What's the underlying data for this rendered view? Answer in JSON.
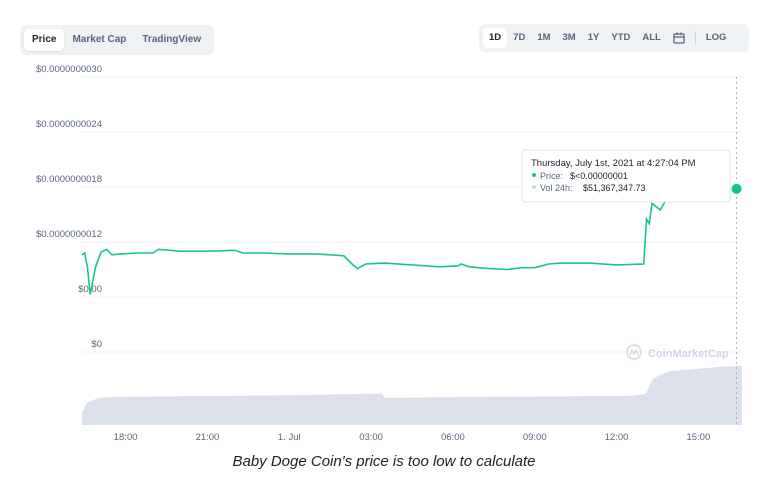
{
  "tabs": {
    "items": [
      {
        "label": "Price",
        "active": true
      },
      {
        "label": "Market Cap",
        "active": false
      },
      {
        "label": "TradingView",
        "active": false
      }
    ]
  },
  "ranges": {
    "items": [
      {
        "label": "1D",
        "active": true
      },
      {
        "label": "7D",
        "active": false
      },
      {
        "label": "1M",
        "active": false
      },
      {
        "label": "3M",
        "active": false
      },
      {
        "label": "1Y",
        "active": false
      },
      {
        "label": "YTD",
        "active": false
      },
      {
        "label": "ALL",
        "active": false
      }
    ],
    "calendar_icon": "calendar-icon",
    "log_label": "LOG"
  },
  "tooltip": {
    "title": "Thursday, July 1st, 2021 at 4:27:04 PM",
    "price_label": "Price:",
    "price_value": "$<0.00000001",
    "vol_label": "Vol 24h:",
    "vol_value": "$51,367,347.73"
  },
  "watermark": "CoinMarketCap",
  "caption": "Baby Doge Coin's price is too low to calculate",
  "colors": {
    "line": "#16c784",
    "volume": "#cfd6e4",
    "grid": "#eff2f5",
    "text": "#58667e"
  },
  "chart_data": {
    "type": "line",
    "ylim": [
      0,
      3e-09
    ],
    "y_ticks": [
      {
        "label": "$0.0000000030",
        "value": 3e-09
      },
      {
        "label": "$0.0000000024",
        "value": 2.4e-09
      },
      {
        "label": "$0.0000000018",
        "value": 1.8e-09
      },
      {
        "label": "$0.0000000012",
        "value": 1.2e-09
      },
      {
        "label": "$0.00",
        "value": 6e-10
      },
      {
        "label": "$0",
        "value": 0
      }
    ],
    "x_ticks": [
      {
        "label": "18:00",
        "hour": 18
      },
      {
        "label": "21:00",
        "hour": 21
      },
      {
        "label": "1. Jul",
        "hour": 24
      },
      {
        "label": "03:00",
        "hour": 27
      },
      {
        "label": "06:00",
        "hour": 30
      },
      {
        "label": "09:00",
        "hour": 33
      },
      {
        "label": "12:00",
        "hour": 36
      },
      {
        "label": "15:00",
        "hour": 39
      }
    ],
    "xlim": [
      16.4,
      40.6
    ],
    "price_series": {
      "x": [
        16.4,
        16.5,
        16.6,
        16.7,
        16.9,
        17.1,
        17.3,
        17.5,
        17.8,
        18.5,
        19.0,
        19.2,
        20.0,
        21.0,
        22.0,
        22.3,
        23.0,
        24.0,
        25.0,
        26.0,
        26.3,
        26.5,
        26.8,
        27.5,
        28.5,
        29.5,
        30.2,
        30.3,
        30.6,
        31.3,
        32.0,
        32.5,
        33.0,
        33.5,
        34.0,
        35.0,
        35.5,
        36.0,
        37.0,
        37.1,
        37.2,
        37.3,
        37.6,
        38.0,
        38.5,
        39.0,
        39.5,
        40.0,
        40.4
      ],
      "y": [
        1.06e-09,
        1.08e-09,
        9.2e-10,
        6.3e-10,
        9.3e-10,
        1.09e-09,
        1.12e-09,
        1.06e-09,
        1.07e-09,
        1.08e-09,
        1.08e-09,
        1.12e-09,
        1.1e-09,
        1.1e-09,
        1.11e-09,
        1.08e-09,
        1.08e-09,
        1.07e-09,
        1.07e-09,
        1.05e-09,
        9.6e-10,
        9.1e-10,
        9.6e-10,
        9.7e-10,
        9.5e-10,
        9.3e-10,
        9.4e-10,
        9.6e-10,
        9.3e-10,
        9.1e-10,
        9e-10,
        9.2e-10,
        9.2e-10,
        9.6e-10,
        9.7e-10,
        9.7e-10,
        9.6e-10,
        9.5e-10,
        9.6e-10,
        1.45e-09,
        1.4e-09,
        1.62e-09,
        1.55e-09,
        1.75e-09,
        1.72e-09,
        1.75e-09,
        1.76e-09,
        1.82e-09,
        1.78e-09
      ]
    },
    "volume_series": {
      "x": [
        16.4,
        16.6,
        17.0,
        17.6,
        20.0,
        24.0,
        27.4,
        27.5,
        30.0,
        33.0,
        36.5,
        37.0,
        37.1,
        37.3,
        37.6,
        38.0,
        39.0,
        40.0,
        40.6
      ],
      "y": [
        0.28,
        0.5,
        0.6,
        0.62,
        0.64,
        0.66,
        0.7,
        0.6,
        0.62,
        0.63,
        0.65,
        0.68,
        0.72,
        1.0,
        1.12,
        1.2,
        1.25,
        1.3,
        1.32
      ]
    },
    "hover_point": {
      "x": 40.4,
      "y": 1.78e-09
    }
  }
}
